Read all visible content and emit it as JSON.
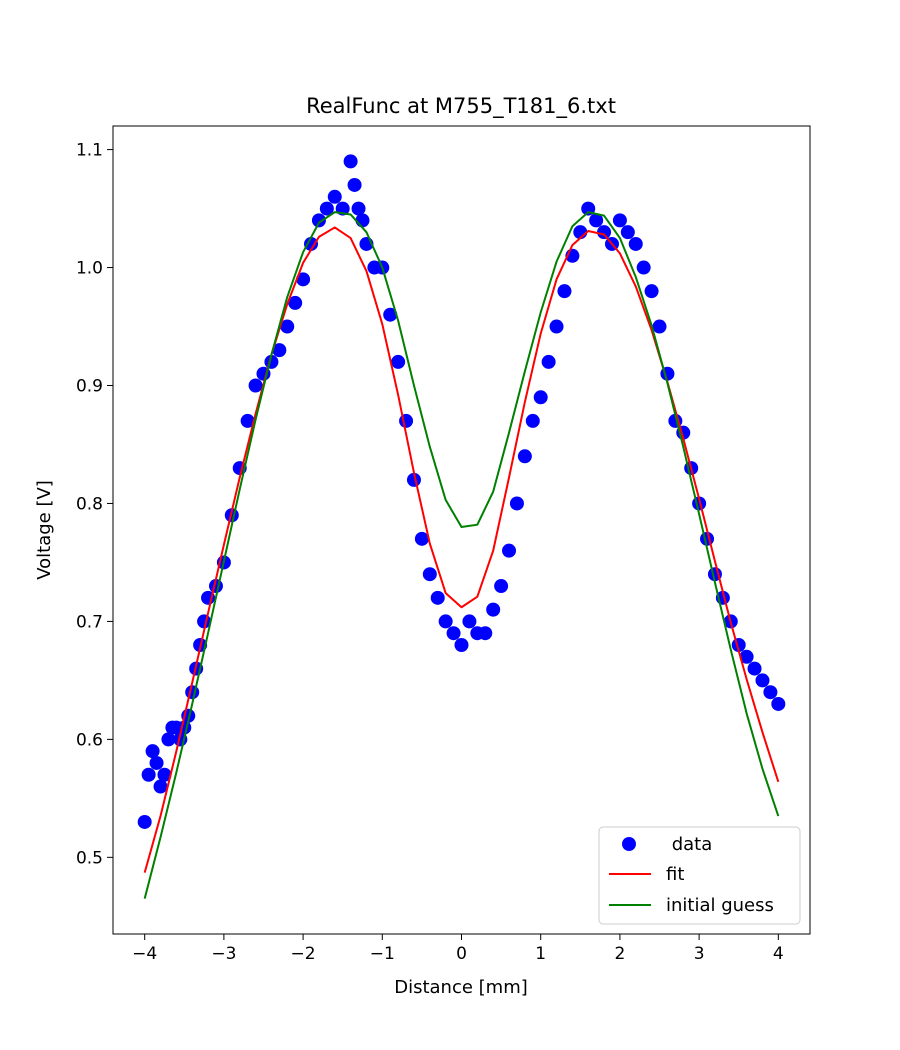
{
  "chart_data": {
    "type": "scatter",
    "title": "RealFunc at M755_T181_6.txt",
    "xlabel": "Distance [mm]",
    "ylabel": "Voltage [V]",
    "xlim": [
      -4.4,
      4.4
    ],
    "ylim": [
      0.435,
      1.12
    ],
    "xticks": [
      -4,
      -3,
      -2,
      -1,
      0,
      1,
      2,
      3,
      4
    ],
    "xtick_labels": [
      "−4",
      "−3",
      "−2",
      "−1",
      "0",
      "1",
      "2",
      "3",
      "4"
    ],
    "yticks": [
      0.5,
      0.6,
      0.7,
      0.8,
      0.9,
      1.0,
      1.1
    ],
    "ytick_labels": [
      "0.5",
      "0.6",
      "0.7",
      "0.8",
      "0.9",
      "1.0",
      "1.1"
    ],
    "grid": false,
    "legend_position": "bottom-right",
    "colors": {
      "data": "#0000ff",
      "fit": "#ff0000",
      "initial_guess": "#008000"
    },
    "series": [
      {
        "name": " data",
        "kind": "scatter",
        "x": [
          -4.0,
          -3.95,
          -3.9,
          -3.85,
          -3.8,
          -3.75,
          -3.7,
          -3.65,
          -3.6,
          -3.55,
          -3.5,
          -3.45,
          -3.4,
          -3.35,
          -3.3,
          -3.25,
          -3.2,
          -3.1,
          -3.0,
          -2.9,
          -2.8,
          -2.7,
          -2.6,
          -2.5,
          -2.4,
          -2.3,
          -2.2,
          -2.1,
          -2.0,
          -1.9,
          -1.8,
          -1.7,
          -1.6,
          -1.5,
          -1.4,
          -1.35,
          -1.3,
          -1.25,
          -1.2,
          -1.1,
          -1.0,
          -0.9,
          -0.8,
          -0.7,
          -0.6,
          -0.5,
          -0.4,
          -0.3,
          -0.2,
          -0.1,
          0.0,
          0.1,
          0.2,
          0.3,
          0.4,
          0.5,
          0.6,
          0.7,
          0.8,
          0.9,
          1.0,
          1.1,
          1.2,
          1.3,
          1.4,
          1.5,
          1.6,
          1.7,
          1.8,
          1.9,
          2.0,
          2.1,
          2.2,
          2.3,
          2.4,
          2.5,
          2.6,
          2.7,
          2.8,
          2.9,
          3.0,
          3.1,
          3.2,
          3.3,
          3.4,
          3.5,
          3.6,
          3.7,
          3.8,
          3.9,
          4.0
        ],
        "y": [
          0.53,
          0.57,
          0.59,
          0.58,
          0.56,
          0.57,
          0.6,
          0.61,
          0.61,
          0.6,
          0.61,
          0.62,
          0.64,
          0.66,
          0.68,
          0.7,
          0.72,
          0.73,
          0.75,
          0.79,
          0.83,
          0.87,
          0.9,
          0.91,
          0.92,
          0.93,
          0.95,
          0.97,
          0.99,
          1.02,
          1.04,
          1.05,
          1.06,
          1.05,
          1.09,
          1.07,
          1.05,
          1.04,
          1.02,
          1.0,
          1.0,
          0.96,
          0.92,
          0.87,
          0.82,
          0.77,
          0.74,
          0.72,
          0.7,
          0.69,
          0.68,
          0.7,
          0.69,
          0.69,
          0.71,
          0.73,
          0.76,
          0.8,
          0.84,
          0.87,
          0.89,
          0.92,
          0.95,
          0.98,
          1.01,
          1.03,
          1.05,
          1.04,
          1.03,
          1.02,
          1.04,
          1.03,
          1.02,
          1.0,
          0.98,
          0.95,
          0.91,
          0.87,
          0.86,
          0.83,
          0.8,
          0.77,
          0.74,
          0.72,
          0.7,
          0.68,
          0.67,
          0.66,
          0.65,
          0.64,
          0.63
        ]
      },
      {
        "name": "fit",
        "kind": "line",
        "x": [
          -4.0,
          -3.8,
          -3.6,
          -3.4,
          -3.2,
          -3.0,
          -2.8,
          -2.6,
          -2.4,
          -2.2,
          -2.0,
          -1.8,
          -1.6,
          -1.4,
          -1.2,
          -1.0,
          -0.8,
          -0.6,
          -0.4,
          -0.2,
          0.0,
          0.2,
          0.4,
          0.6,
          0.8,
          1.0,
          1.2,
          1.4,
          1.6,
          1.8,
          2.0,
          2.2,
          2.4,
          2.6,
          2.8,
          3.0,
          3.2,
          3.4,
          3.6,
          3.8,
          4.0
        ],
        "y": [
          0.487,
          0.535,
          0.59,
          0.648,
          0.707,
          0.765,
          0.822,
          0.876,
          0.926,
          0.969,
          1.004,
          1.026,
          1.034,
          1.025,
          0.997,
          0.952,
          0.892,
          0.826,
          0.766,
          0.724,
          0.712,
          0.721,
          0.76,
          0.822,
          0.886,
          0.944,
          0.99,
          1.019,
          1.031,
          1.028,
          1.012,
          0.984,
          0.947,
          0.903,
          0.855,
          0.804,
          0.751,
          0.699,
          0.651,
          0.606,
          0.564
        ]
      },
      {
        "name": "initial guess",
        "kind": "line",
        "x": [
          -4.0,
          -3.8,
          -3.6,
          -3.4,
          -3.2,
          -3.0,
          -2.8,
          -2.6,
          -2.4,
          -2.2,
          -2.0,
          -1.8,
          -1.6,
          -1.4,
          -1.2,
          -1.0,
          -0.8,
          -0.6,
          -0.4,
          -0.2,
          0.0,
          0.2,
          0.4,
          0.6,
          0.8,
          1.0,
          1.2,
          1.4,
          1.6,
          1.8,
          2.0,
          2.2,
          2.4,
          2.6,
          2.8,
          3.0,
          3.2,
          3.4,
          3.6,
          3.8,
          4.0
        ],
        "y": [
          0.465,
          0.517,
          0.572,
          0.63,
          0.69,
          0.751,
          0.812,
          0.871,
          0.926,
          0.975,
          1.013,
          1.038,
          1.047,
          1.045,
          1.03,
          1.0,
          0.955,
          0.9,
          0.848,
          0.803,
          0.78,
          0.782,
          0.81,
          0.86,
          0.912,
          0.962,
          1.005,
          1.035,
          1.047,
          1.044,
          1.025,
          0.992,
          0.951,
          0.902,
          0.848,
          0.791,
          0.733,
          0.676,
          0.622,
          0.575,
          0.535
        ]
      }
    ]
  }
}
